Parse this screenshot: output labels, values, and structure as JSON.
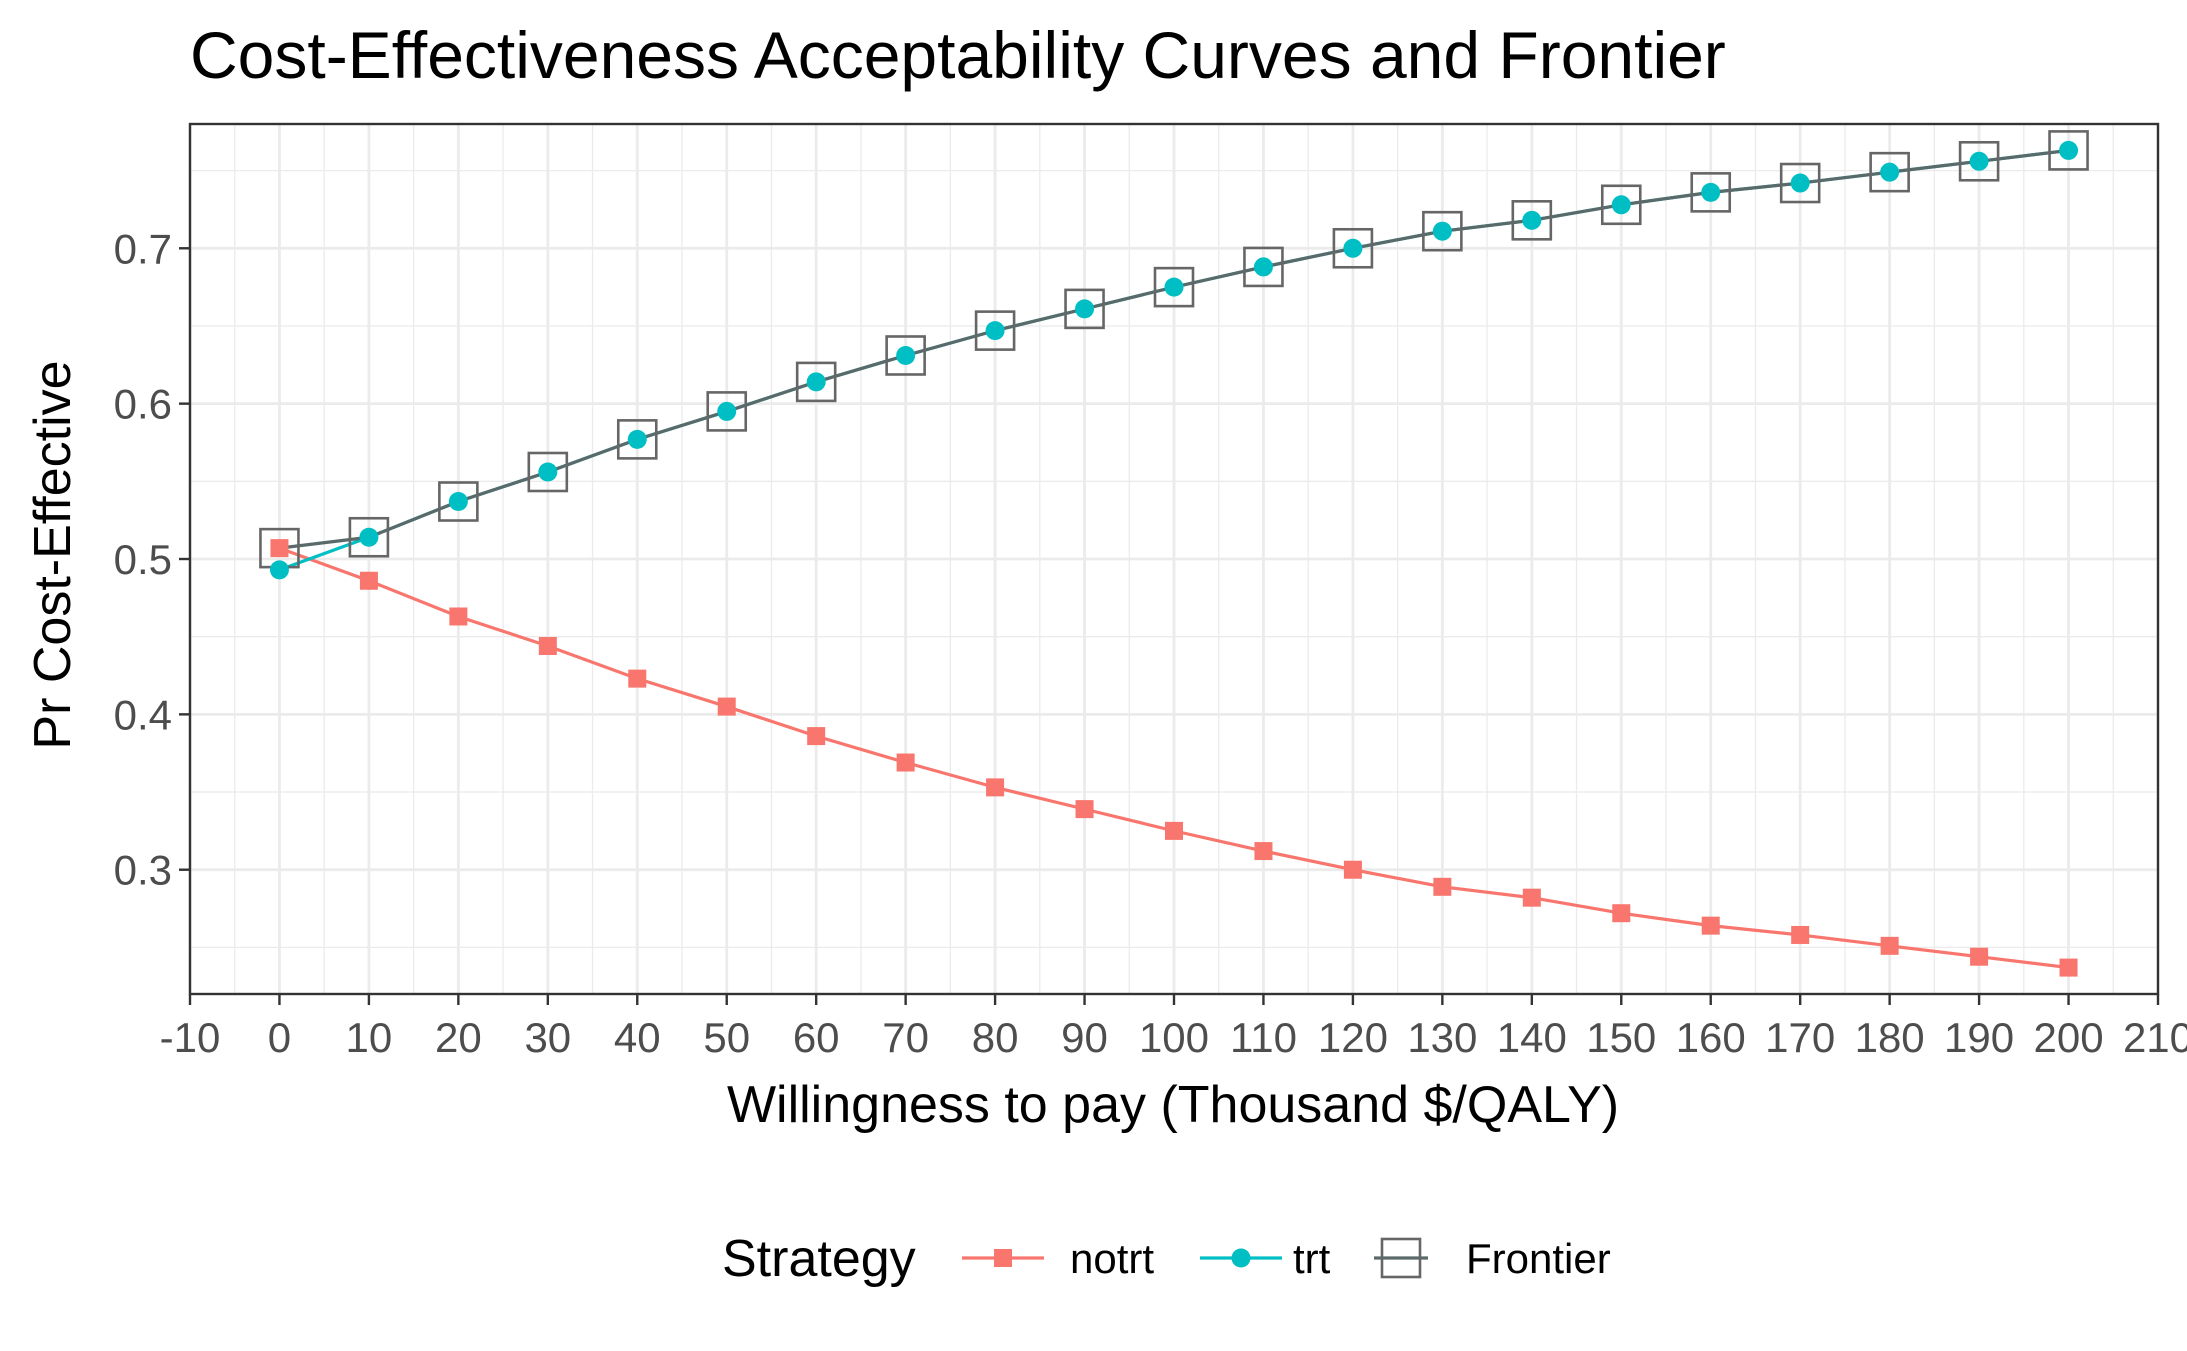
{
  "chart_data": {
    "type": "line",
    "title": "Cost-Effectiveness Acceptability Curves and Frontier",
    "xlabel": "Willingness to pay (Thousand $/QALY)",
    "ylabel": "Pr Cost-Effective",
    "xlim": [
      -10,
      210
    ],
    "ylim": [
      0.22,
      0.78
    ],
    "x_ticks": [
      -10,
      0,
      10,
      20,
      30,
      40,
      50,
      60,
      70,
      80,
      90,
      100,
      110,
      120,
      130,
      140,
      150,
      160,
      170,
      180,
      190,
      200,
      210
    ],
    "y_ticks": [
      0.3,
      0.4,
      0.5,
      0.6,
      0.7
    ],
    "grid": true,
    "legend_position": "bottom",
    "legend_title": "Strategy",
    "x": [
      0,
      10,
      20,
      30,
      40,
      50,
      60,
      70,
      80,
      90,
      100,
      110,
      120,
      130,
      140,
      150,
      160,
      170,
      180,
      190,
      200
    ],
    "series": [
      {
        "name": "notrt",
        "color": "#f8766d",
        "marker": "square",
        "values": [
          0.507,
          0.486,
          0.463,
          0.444,
          0.423,
          0.405,
          0.386,
          0.369,
          0.353,
          0.339,
          0.325,
          0.312,
          0.3,
          0.289,
          0.282,
          0.272,
          0.264,
          0.258,
          0.251,
          0.244,
          0.237
        ]
      },
      {
        "name": "trt",
        "color": "#00bfc4",
        "marker": "circle",
        "values": [
          0.493,
          0.514,
          0.537,
          0.556,
          0.577,
          0.595,
          0.614,
          0.631,
          0.647,
          0.661,
          0.675,
          0.688,
          0.7,
          0.711,
          0.718,
          0.728,
          0.736,
          0.742,
          0.749,
          0.756,
          0.763
        ]
      }
    ],
    "frontier": {
      "name": "Frontier",
      "color": "#5a6a6a",
      "marker": "open-square",
      "values": [
        0.507,
        0.514,
        0.537,
        0.556,
        0.577,
        0.595,
        0.614,
        0.631,
        0.647,
        0.661,
        0.675,
        0.688,
        0.7,
        0.711,
        0.718,
        0.728,
        0.736,
        0.742,
        0.749,
        0.756,
        0.763
      ]
    }
  }
}
